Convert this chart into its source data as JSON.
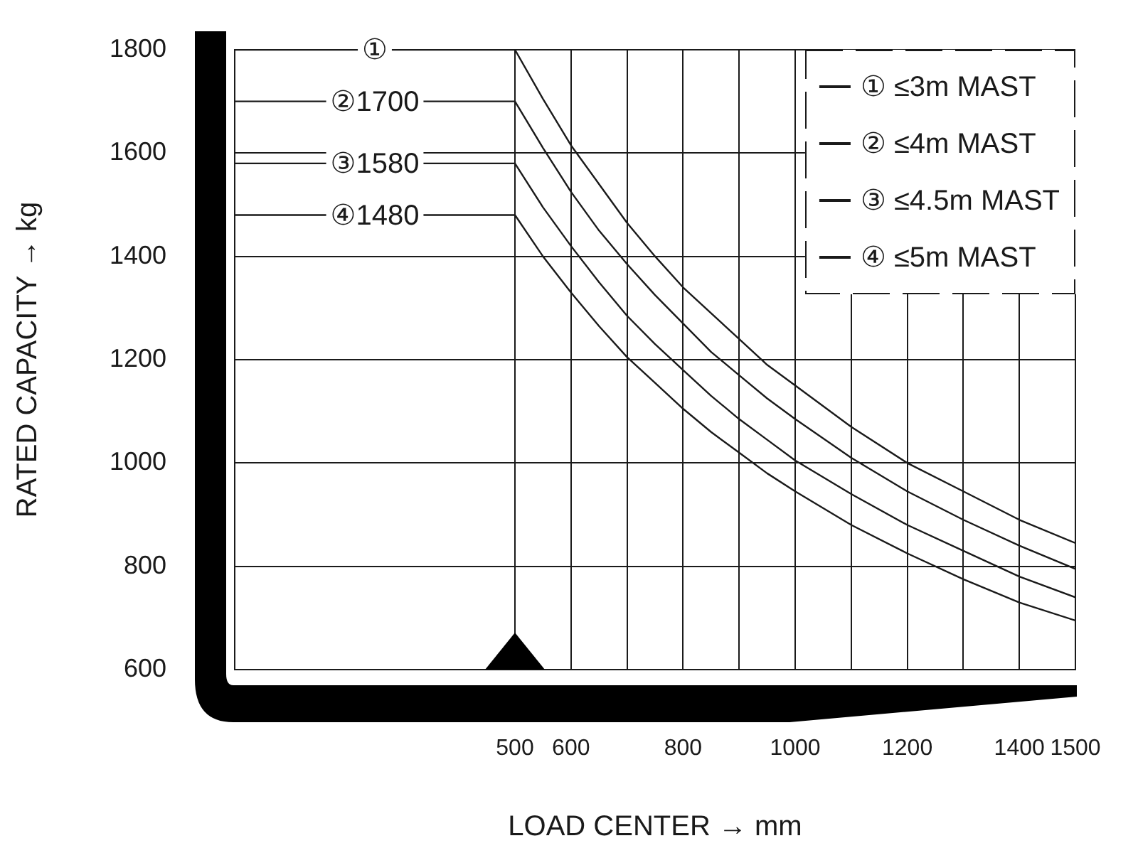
{
  "chart_data": {
    "type": "line",
    "xlabel": "LOAD CENTER → mm",
    "ylabel": "RATED CAPACITY → kg",
    "series": [
      {
        "name": "① ≤3m MAST",
        "color": "#1a1a1a",
        "x": [
          0,
          500,
          550,
          600,
          650,
          700,
          750,
          800,
          850,
          900,
          950,
          1000,
          1100,
          1200,
          1300,
          1400,
          1500
        ],
        "values": [
          1800,
          1800,
          1705,
          1615,
          1540,
          1465,
          1400,
          1340,
          1290,
          1240,
          1190,
          1150,
          1070,
          1000,
          945,
          890,
          845
        ]
      },
      {
        "name": "② ≤4m MAST",
        "color": "#1a1a1a",
        "x": [
          0,
          500,
          550,
          600,
          650,
          700,
          750,
          800,
          850,
          900,
          950,
          1000,
          1100,
          1200,
          1300,
          1400,
          1500
        ],
        "values": [
          1700,
          1700,
          1610,
          1525,
          1450,
          1385,
          1325,
          1270,
          1215,
          1170,
          1125,
          1085,
          1010,
          945,
          890,
          840,
          795
        ]
      },
      {
        "name": "③ ≤4.5m MAST",
        "color": "#1a1a1a",
        "x": [
          0,
          500,
          550,
          600,
          650,
          700,
          750,
          800,
          850,
          900,
          950,
          1000,
          1100,
          1200,
          1300,
          1400,
          1500
        ],
        "values": [
          1580,
          1580,
          1495,
          1420,
          1350,
          1285,
          1230,
          1180,
          1130,
          1085,
          1045,
          1005,
          940,
          880,
          830,
          780,
          740
        ]
      },
      {
        "name": "④ ≤5m MAST",
        "color": "#1a1a1a",
        "x": [
          0,
          500,
          550,
          600,
          650,
          700,
          750,
          800,
          850,
          900,
          950,
          1000,
          1100,
          1200,
          1300,
          1400,
          1500
        ],
        "values": [
          1480,
          1480,
          1400,
          1330,
          1265,
          1205,
          1155,
          1105,
          1060,
          1020,
          980,
          945,
          880,
          825,
          775,
          730,
          695
        ]
      }
    ],
    "xlim": [
      0,
      1500
    ],
    "ylim": [
      600,
      1800
    ],
    "xticks": [
      500,
      600,
      {
        "value": 700,
        "label": null
      },
      800,
      {
        "value": 900,
        "label": null
      },
      1000,
      {
        "value": 1100,
        "label": null
      },
      1200,
      {
        "value": 1300,
        "label": null
      },
      1400,
      1500
    ],
    "yticks": [
      600,
      800,
      1000,
      1200,
      1400,
      1600,
      1800
    ],
    "grid": true,
    "legend": "top right",
    "annotations": [
      "①",
      "②1700",
      "③1580",
      "④1480"
    ]
  }
}
